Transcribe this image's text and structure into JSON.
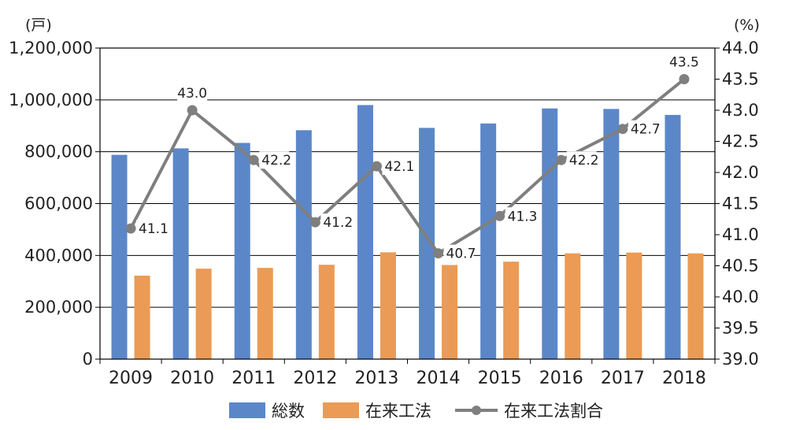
{
  "chart_data": {
    "type": "bar",
    "categories": [
      "2009",
      "2010",
      "2011",
      "2012",
      "2013",
      "2014",
      "2015",
      "2016",
      "2017",
      "2018"
    ],
    "series": [
      {
        "name": "総数",
        "type": "bar",
        "axis": "left",
        "color": "#5B87C9",
        "values": [
          788000,
          813000,
          834000,
          883000,
          980000,
          892000,
          909000,
          967000,
          965000,
          942000
        ]
      },
      {
        "name": "在来工法",
        "type": "bar",
        "axis": "left",
        "color": "#EB9B55",
        "values": [
          322000,
          349000,
          352000,
          364000,
          412000,
          363000,
          376000,
          408000,
          411000,
          408000
        ]
      },
      {
        "name": "在来工法割合",
        "type": "line",
        "axis": "right",
        "color": "#7F7F7F",
        "values": [
          41.1,
          43.0,
          42.2,
          41.2,
          42.1,
          40.7,
          41.3,
          42.2,
          42.7,
          43.5
        ],
        "labels": [
          "41.1",
          "43.0",
          "42.2",
          "41.2",
          "42.1",
          "40.7",
          "41.3",
          "42.2",
          "42.7",
          "43.5"
        ]
      }
    ],
    "left_axis": {
      "unit": "(戸)",
      "ylim": [
        0,
        1200000
      ],
      "ticks": [
        "0",
        "200,000",
        "400,000",
        "600,000",
        "800,000",
        "1,000,000",
        "1,200,000"
      ]
    },
    "right_axis": {
      "unit": "(%)",
      "ylim": [
        39.0,
        44.0
      ],
      "ticks": [
        "39.0",
        "39.5",
        "40.0",
        "40.5",
        "41.0",
        "41.5",
        "42.0",
        "42.5",
        "43.0",
        "43.5",
        "44.0"
      ]
    },
    "grid": true,
    "legend": "bottom"
  }
}
